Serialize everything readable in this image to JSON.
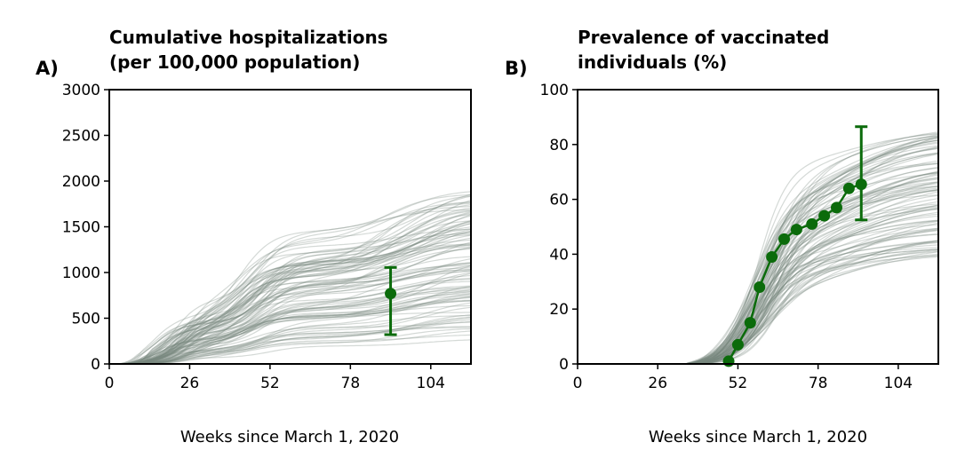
{
  "chart_data": [
    {
      "type": "line",
      "panel_label": "A)",
      "title_lines": [
        "Cumulative hospitalizations",
        "(per 100,000 population)"
      ],
      "xlabel": "Weeks since March 1, 2020",
      "ylabel": "",
      "xlim": [
        0,
        117
      ],
      "ylim": [
        0,
        3000
      ],
      "xticks": [
        0,
        26,
        52,
        78,
        104
      ],
      "yticks": [
        0,
        500,
        1000,
        1500,
        2000,
        2500,
        3000
      ],
      "grid": false,
      "colors": {
        "simulations": "#7a8a80",
        "observed": "#0b6b0b"
      },
      "simulation_summary": {
        "count": 100,
        "start_week_range": [
          2,
          8
        ],
        "end_value_range": [
          250,
          1950
        ]
      },
      "observed": {
        "x": [
          91
        ],
        "y": [
          770
        ],
        "err_low": [
          320
        ],
        "err_high": [
          1055
        ]
      }
    },
    {
      "type": "line",
      "panel_label": "B)",
      "title_lines": [
        "Prevalence of vaccinated",
        "individuals (%)"
      ],
      "xlabel": "Weeks since March 1, 2020",
      "ylabel": "",
      "xlim": [
        0,
        117
      ],
      "ylim": [
        0,
        100
      ],
      "xticks": [
        0,
        26,
        52,
        78,
        104
      ],
      "yticks": [
        0,
        20,
        40,
        60,
        80,
        100
      ],
      "grid": false,
      "colors": {
        "simulations": "#7a8a80",
        "observed": "#0b6b0b"
      },
      "simulation_summary": {
        "count": 100,
        "onset_week": 35,
        "plateau_range": [
          41,
          90
        ]
      },
      "observed": {
        "x": [
          49,
          52,
          56,
          59,
          63,
          67,
          71,
          76,
          80,
          84,
          88,
          92
        ],
        "y": [
          1,
          7,
          15,
          28,
          39,
          45.5,
          49,
          51,
          54,
          57,
          64,
          65.5
        ],
        "error_bar": {
          "x": 92,
          "low": 52.5,
          "high": 86.5
        }
      }
    }
  ]
}
